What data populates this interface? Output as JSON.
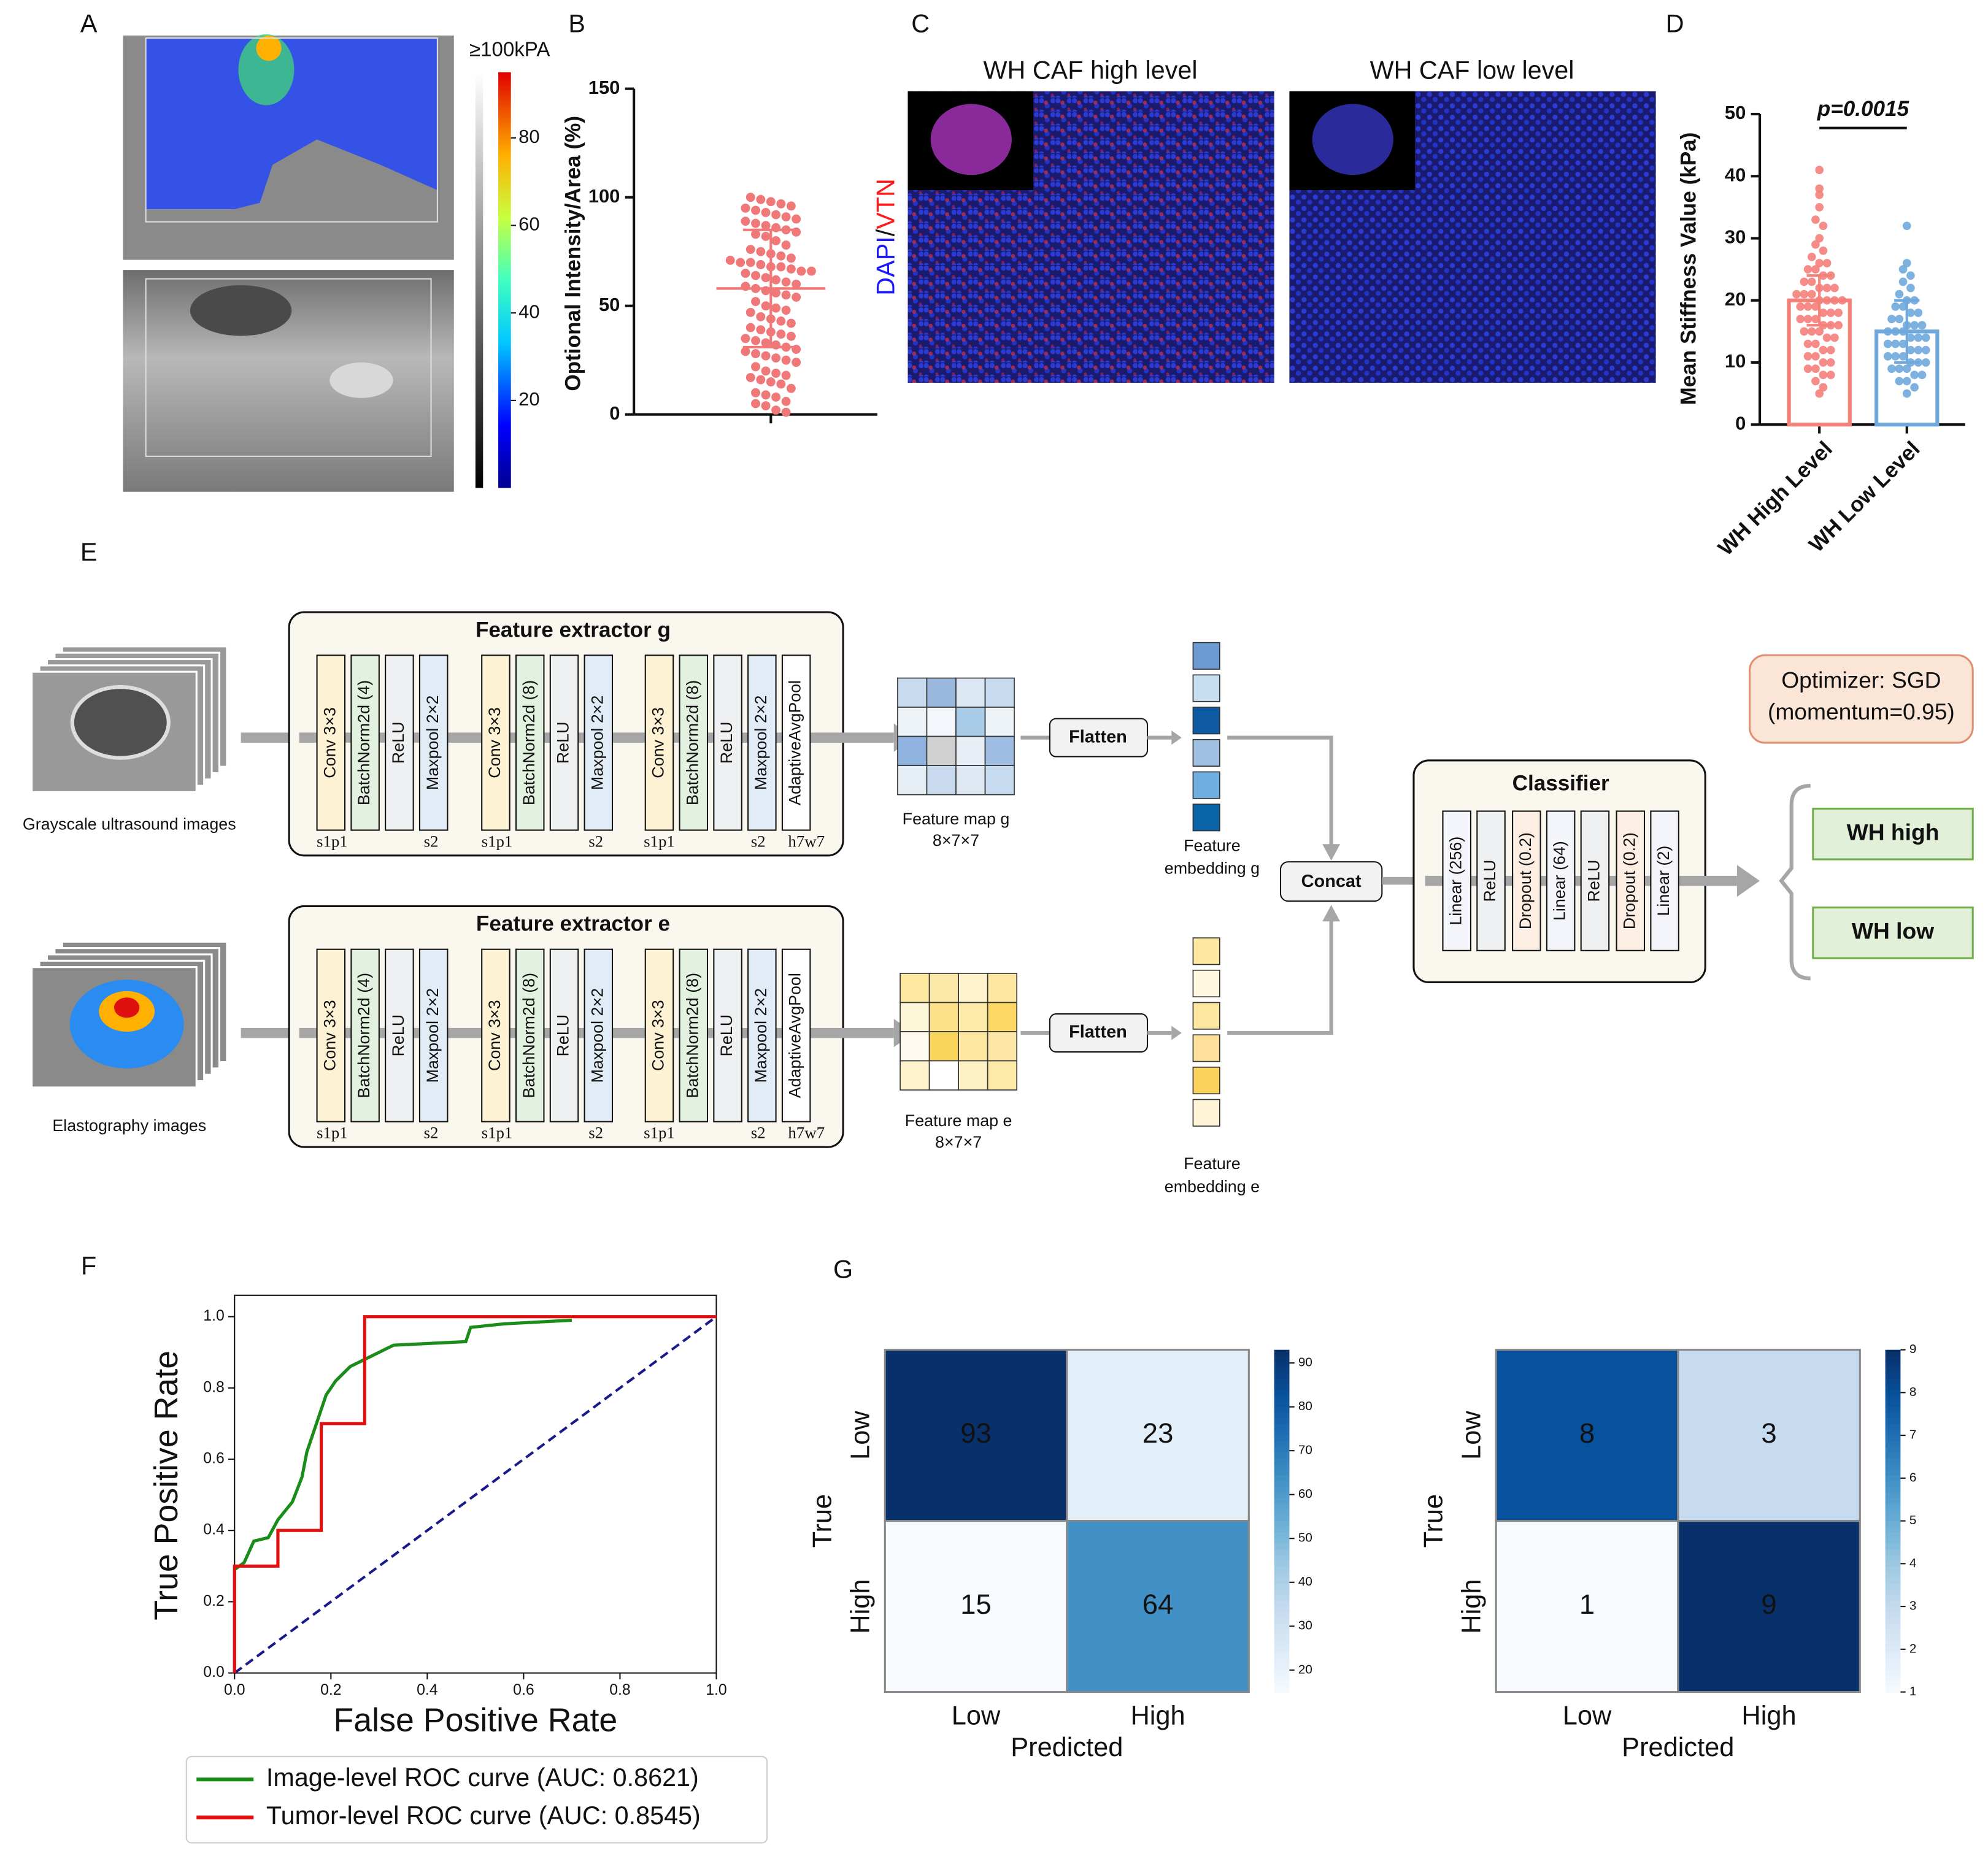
{
  "panel_labels": [
    "A",
    "B",
    "C",
    "D",
    "E",
    "F",
    "G"
  ],
  "panel_a": {
    "colorbar_label": "≥100kPA",
    "colorbar_lim": [
      0,
      95
    ],
    "colorbar_ticks": [
      20,
      40,
      60,
      80
    ]
  },
  "panel_c": {
    "titles": [
      "WH CAF high level",
      "WH CAF low level"
    ],
    "ylabel_parts": [
      {
        "text": "DAPI",
        "color": "#1a1aff"
      },
      {
        "text": "/",
        "color": "#111111"
      },
      {
        "text": "VTN",
        "color": "#ff1a1a"
      }
    ]
  },
  "chart_data": [
    {
      "type": "dot_plot",
      "ylabel": "Optional Intensity/Area (%)",
      "ylim": [
        0,
        150
      ],
      "yticks": [
        0,
        50,
        100,
        150
      ],
      "color": "#f07878",
      "mean": 58,
      "sd": 27,
      "values": [
        100,
        99,
        98,
        97,
        96,
        95,
        94,
        93,
        92,
        91,
        90,
        89,
        88,
        87,
        86,
        85,
        84,
        83,
        82,
        80,
        78,
        76,
        75,
        74,
        73,
        72,
        71,
        70,
        70,
        69,
        68,
        68,
        67,
        66,
        66,
        65,
        64,
        63,
        62,
        61,
        60,
        59,
        58,
        57,
        56,
        55,
        54,
        52,
        50,
        49,
        48,
        47,
        45,
        44,
        43,
        42,
        40,
        39,
        38,
        37,
        36,
        35,
        34,
        33,
        32,
        31,
        30,
        29,
        28,
        27,
        26,
        25,
        24,
        22,
        20,
        19,
        18,
        17,
        16,
        15,
        14,
        12,
        10,
        9,
        8,
        6,
        5,
        4,
        2,
        1
      ]
    },
    {
      "type": "bar",
      "ylabel": "Mean Stiffness Value (kPa)",
      "ylim": [
        0,
        50
      ],
      "yticks": [
        0,
        10,
        20,
        30,
        40,
        50
      ],
      "annotation": "p=0.0015",
      "categories": [
        "WH High Level",
        "WH Low Level"
      ],
      "values": [
        20,
        15
      ],
      "errors": [
        4,
        5
      ],
      "colors": [
        "#f4807a",
        "#6fa8dc"
      ],
      "points": [
        [
          41,
          38,
          37,
          35,
          33,
          32,
          30,
          29,
          28,
          27,
          26,
          26,
          25,
          25,
          24,
          24,
          23,
          23,
          22,
          22,
          22,
          21,
          21,
          21,
          20,
          20,
          20,
          20,
          19,
          19,
          19,
          18,
          18,
          18,
          17,
          17,
          17,
          16,
          16,
          16,
          15,
          15,
          15,
          14,
          14,
          13,
          13,
          12,
          12,
          11,
          11,
          10,
          10,
          9,
          9,
          8,
          8,
          7,
          6,
          5
        ],
        [
          32,
          26,
          25,
          24,
          23,
          22,
          21,
          20,
          20,
          19,
          19,
          18,
          18,
          17,
          17,
          16,
          16,
          16,
          15,
          15,
          15,
          14,
          14,
          14,
          13,
          13,
          13,
          12,
          12,
          12,
          11,
          11,
          11,
          10,
          10,
          10,
          9,
          9,
          9,
          8,
          8,
          7,
          7,
          6,
          5
        ]
      ]
    },
    {
      "type": "line",
      "xlabel": "False Positive Rate",
      "ylabel": "True Positive Rate",
      "xlim": [
        0,
        1
      ],
      "ylim": [
        0,
        1.06
      ],
      "xticks": [
        {
          "value": 0,
          "label": "0.0"
        },
        0.2,
        0.4,
        0.6,
        0.8,
        {
          "value": 1,
          "label": "1.0"
        }
      ],
      "yticks": [
        {
          "value": 0,
          "label": "0.0"
        },
        0.2,
        0.4,
        0.6,
        0.8,
        {
          "value": 1,
          "label": "1.0"
        }
      ],
      "series": [
        {
          "name": "Image-level ROC curve (AUC: 0.8621)",
          "color": "#1a8c1a",
          "x": [
            0,
            0,
            0.02,
            0.04,
            0.07,
            0.09,
            0.12,
            0.14,
            0.15,
            0.17,
            0.19,
            0.21,
            0.24,
            0.27,
            0.3,
            0.33,
            0.48,
            0.49,
            0.56,
            0.7
          ],
          "y": [
            0,
            0.29,
            0.31,
            0.37,
            0.38,
            0.43,
            0.48,
            0.55,
            0.62,
            0.7,
            0.78,
            0.82,
            0.86,
            0.88,
            0.9,
            0.92,
            0.93,
            0.97,
            0.98,
            0.99
          ]
        },
        {
          "name": "Tumor-level ROC curve (AUC: 0.8545)",
          "color": "#e01010",
          "x": [
            0,
            0,
            0.09,
            0.09,
            0.18,
            0.18,
            0.27,
            0.27,
            1
          ],
          "y": [
            0,
            0.3,
            0.3,
            0.4,
            0.4,
            0.7,
            0.7,
            1,
            1
          ]
        }
      ],
      "reference_line": {
        "color": "#1a1a8c",
        "x": [
          0,
          1
        ],
        "y": [
          0,
          1
        ]
      }
    },
    {
      "type": "heatmap",
      "cmap": "Blues",
      "xlabel": "Predicted",
      "ylabel": "True",
      "rows": [
        "Low",
        "High"
      ],
      "cols": [
        "Low",
        "High"
      ],
      "values": [
        [
          93,
          23
        ],
        [
          15,
          64
        ]
      ],
      "clim": [
        15,
        93
      ],
      "cticks": [
        20,
        30,
        40,
        50,
        60,
        70,
        80,
        90
      ]
    },
    {
      "type": "heatmap",
      "cmap": "Blues",
      "xlabel": "Predicted",
      "ylabel": "True",
      "rows": [
        "Low",
        "High"
      ],
      "cols": [
        "Low",
        "High"
      ],
      "values": [
        [
          8,
          3
        ],
        [
          1,
          9
        ]
      ],
      "clim": [
        1,
        9
      ],
      "cticks": [
        1,
        2,
        3,
        4,
        5,
        6,
        7,
        8,
        9
      ]
    }
  ],
  "diagram": {
    "inputs": [
      "Grayscale ultrasound images",
      "Elastography images"
    ],
    "extractors": [
      {
        "title": "Feature extractor g",
        "layers": [
          "Conv 3×3",
          "BatchNorm2d (4)",
          "ReLU",
          "Maxpool 2×2",
          "Conv 3×3",
          "BatchNorm2d (8)",
          "ReLU",
          "Maxpool 2×2",
          "Conv 3×3",
          "BatchNorm2d (8)",
          "ReLU",
          "Maxpool 2×2",
          "AdaptiveAvgPool"
        ],
        "sublabels": [
          "s1p1",
          "s2",
          "s1p1",
          "s2",
          "s1p1",
          "s2",
          "h7w7"
        ],
        "feature_map": "Feature map g",
        "shape": "8×7×7",
        "embedding": [
          "Feature",
          "embedding g"
        ]
      },
      {
        "title": "Feature extractor e",
        "layers": [
          "Conv 3×3",
          "BatchNorm2d (4)",
          "ReLU",
          "Maxpool 2×2",
          "Conv 3×3",
          "BatchNorm2d (8)",
          "ReLU",
          "Maxpool 2×2",
          "Conv 3×3",
          "BatchNorm2d (8)",
          "ReLU",
          "Maxpool 2×2",
          "AdaptiveAvgPool"
        ],
        "sublabels": [
          "s1p1",
          "s2",
          "s1p1",
          "s2",
          "s1p1",
          "s2",
          "h7w7"
        ],
        "feature_map": "Feature map e",
        "shape": "8×7×7",
        "embedding": [
          "Feature",
          "embedding e"
        ]
      }
    ],
    "flatten": "Flatten",
    "concat": "Concat",
    "classifier": {
      "title": "Classifier",
      "layers": [
        "Linear (256)",
        "ReLU",
        "Dropout (0.2)",
        "Linear (64)",
        "ReLU",
        "Dropout (0.2)",
        "Linear (2)"
      ]
    },
    "optimizer": [
      "Optimizer:  SGD",
      "(momentum=0.95)"
    ],
    "outputs": [
      "WH high",
      "WH low"
    ]
  }
}
